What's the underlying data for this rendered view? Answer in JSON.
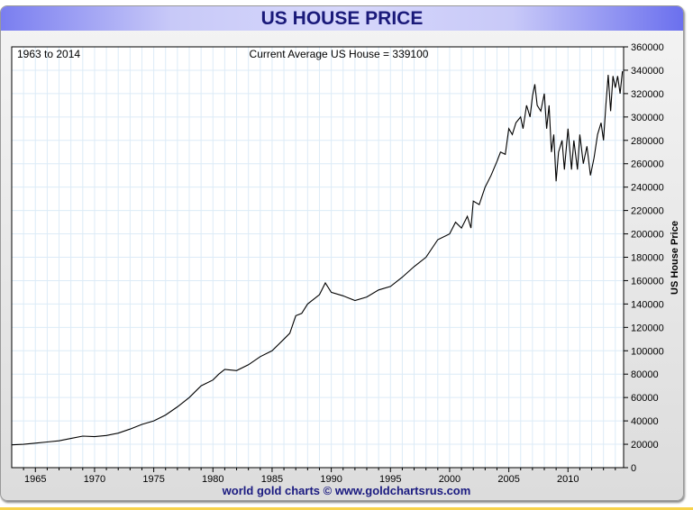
{
  "chart_data": {
    "type": "line",
    "title": "US HOUSE PRICE",
    "range_label": "1963 to 2014",
    "current_label": "Current Average US House = 339100",
    "ylabel": "US House Price",
    "xlabel": "",
    "xlim": [
      1963,
      2014.7
    ],
    "ylim": [
      0,
      360000
    ],
    "grid": true,
    "x_ticks": [
      "1965",
      "1970",
      "1975",
      "1980",
      "1985",
      "1990",
      "1995",
      "2000",
      "2005",
      "2010"
    ],
    "y_ticks": [
      "0",
      "20000",
      "40000",
      "60000",
      "80000",
      "100000",
      "120000",
      "140000",
      "160000",
      "180000",
      "200000",
      "220000",
      "240000",
      "260000",
      "280000",
      "300000",
      "320000",
      "340000",
      "360000"
    ],
    "line_color": "#000000",
    "series": [
      {
        "x": [
          1963,
          1964,
          1965,
          1966,
          1967,
          1968,
          1969,
          1970,
          1971,
          1972,
          1973,
          1974,
          1975,
          1976,
          1977,
          1978,
          1979,
          1980,
          1980.5,
          1981,
          1982,
          1983,
          1984,
          1985,
          1986,
          1986.5,
          1987,
          1987.5,
          1988,
          1989,
          1989.5,
          1990,
          1991,
          1992,
          1993,
          1994,
          1995,
          1996,
          1997,
          1998,
          1999,
          2000,
          2000.5,
          2001,
          2001.5,
          2001.8,
          2002,
          2002.5,
          2003,
          2003.5,
          2004,
          2004.3,
          2004.7,
          2005,
          2005.3,
          2005.6,
          2006,
          2006.2,
          2006.5,
          2006.8,
          2007,
          2007.2,
          2007.4,
          2007.7,
          2008,
          2008.2,
          2008.4,
          2008.6,
          2008.8,
          2009,
          2009.2,
          2009.5,
          2009.7,
          2010,
          2010.3,
          2010.5,
          2010.8,
          2011,
          2011.3,
          2011.6,
          2011.9,
          2012.2,
          2012.5,
          2012.8,
          2013,
          2013.2,
          2013.4,
          2013.6,
          2013.8,
          2014,
          2014.2,
          2014.4,
          2014.6
        ],
        "y": [
          19500,
          20000,
          21000,
          22000,
          23000,
          25000,
          27000,
          26500,
          27500,
          29500,
          33000,
          37000,
          40000,
          45000,
          52000,
          60000,
          70000,
          75000,
          80000,
          84000,
          83000,
          88000,
          95000,
          100000,
          110000,
          115000,
          130000,
          132000,
          140000,
          148000,
          158000,
          150000,
          147000,
          143000,
          146000,
          152000,
          155000,
          163000,
          172000,
          180000,
          195000,
          200000,
          210000,
          205000,
          215000,
          205000,
          228000,
          225000,
          240000,
          250000,
          262000,
          270000,
          268000,
          290000,
          285000,
          295000,
          300000,
          290000,
          310000,
          300000,
          318000,
          328000,
          310000,
          305000,
          320000,
          290000,
          310000,
          270000,
          285000,
          245000,
          270000,
          280000,
          255000,
          290000,
          255000,
          280000,
          255000,
          285000,
          260000,
          275000,
          250000,
          265000,
          285000,
          295000,
          280000,
          310000,
          336000,
          305000,
          335000,
          325000,
          335000,
          320000,
          339100
        ]
      }
    ]
  },
  "footer": "world gold charts © www.goldchartsrus.com"
}
